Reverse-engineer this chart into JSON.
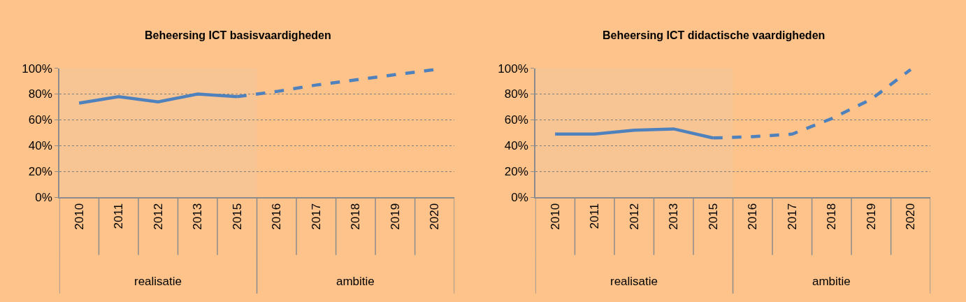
{
  "chart_data": [
    {
      "type": "line",
      "title": "Beheersing ICT basisvaardigheden",
      "categories": [
        "2010",
        "2011",
        "2012",
        "2013",
        "2015",
        "2016",
        "2017",
        "2018",
        "2019",
        "2020"
      ],
      "series": [
        {
          "color": "#4f81bd",
          "line_style": "solid",
          "values": [
            73,
            78,
            74,
            80,
            78,
            null,
            null,
            null,
            null,
            null
          ]
        },
        {
          "color": "#4f81bd",
          "line_style": "dashed",
          "values": [
            null,
            null,
            null,
            null,
            78,
            82,
            87,
            91,
            95,
            99
          ]
        }
      ],
      "ylim": [
        0,
        100
      ],
      "yticks": [
        {
          "value": 0,
          "label": "0%"
        },
        {
          "value": 20,
          "label": "20%"
        },
        {
          "value": 40,
          "label": "40%"
        },
        {
          "value": 60,
          "label": "60%"
        },
        {
          "value": 80,
          "label": "80%"
        },
        {
          "value": 100,
          "label": "100%"
        }
      ],
      "grid": "y",
      "marker": "none",
      "bands": [
        {
          "axis": "x",
          "from": "2010",
          "to": "2015",
          "color": "#f7c594"
        }
      ],
      "annotations": [
        "realisatie",
        "ambitie"
      ]
    },
    {
      "type": "line",
      "title": "Beheersing ICT didactische vaardigheden",
      "categories": [
        "2010",
        "2011",
        "2012",
        "2013",
        "2015",
        "2016",
        "2017",
        "2018",
        "2019",
        "2020"
      ],
      "series": [
        {
          "color": "#4f81bd",
          "line_style": "solid",
          "values": [
            49,
            49,
            52,
            53,
            46,
            null,
            null,
            null,
            null,
            null
          ]
        },
        {
          "color": "#4f81bd",
          "line_style": "dashed",
          "values": [
            null,
            null,
            null,
            null,
            46,
            47,
            49,
            61,
            76,
            99
          ]
        }
      ],
      "ylim": [
        0,
        100
      ],
      "yticks": [
        {
          "value": 0,
          "label": "0%"
        },
        {
          "value": 20,
          "label": "20%"
        },
        {
          "value": 40,
          "label": "40%"
        },
        {
          "value": 60,
          "label": "60%"
        },
        {
          "value": 80,
          "label": "80%"
        },
        {
          "value": 100,
          "label": "100%"
        }
      ],
      "grid": "y",
      "marker": "none",
      "bands": [
        {
          "axis": "x",
          "from": "2010",
          "to": "2015",
          "color": "#f7c594"
        }
      ],
      "annotations": [
        "realisatie",
        "ambitie"
      ]
    }
  ]
}
